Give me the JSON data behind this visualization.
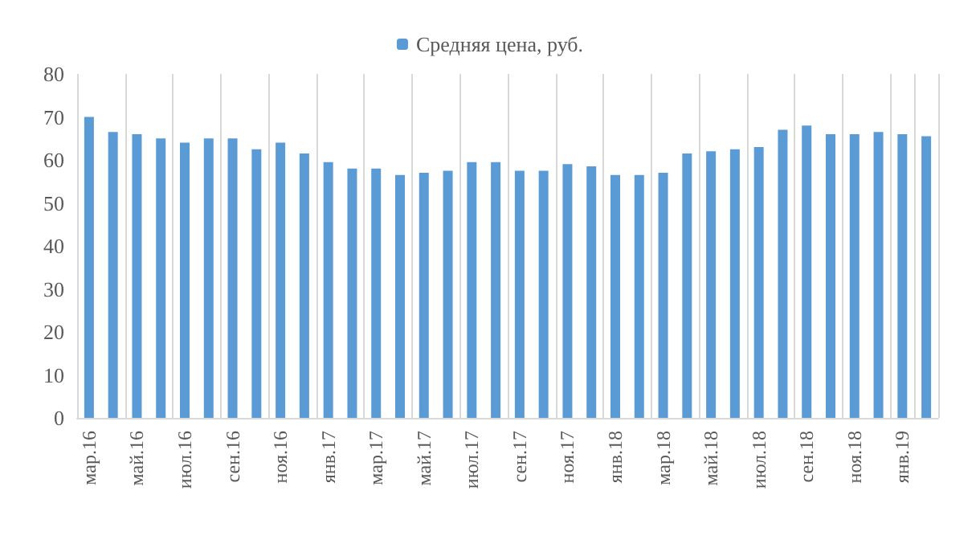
{
  "chart_data": {
    "type": "bar",
    "legend": "top",
    "categories": [
      "мар.16",
      null,
      "май.16",
      null,
      "июл.16",
      null,
      "сен.16",
      null,
      "ноя.16",
      null,
      "янв.17",
      null,
      "мар.17",
      null,
      "май.17",
      null,
      "июл.17",
      null,
      "сен.17",
      null,
      "ноя.17",
      null,
      "янв.18",
      null,
      "мар.18",
      null,
      "май.18",
      null,
      "июл.18",
      null,
      "сен.18",
      null,
      "ноя.18",
      null,
      "янв.19",
      null
    ],
    "series": [
      {
        "name": "Средняя цена, руб.",
        "color": "#5b9bd5",
        "values": [
          70,
          66.5,
          66,
          65,
          64,
          65,
          65,
          62.5,
          64,
          61.5,
          59.5,
          58,
          58,
          56.5,
          57,
          57.5,
          59.5,
          59.5,
          57.5,
          57.5,
          59,
          58.5,
          56.5,
          56.5,
          57,
          61.5,
          62,
          62.5,
          63,
          67,
          68,
          66,
          66,
          66.5,
          66,
          65.5
        ]
      }
    ],
    "ylim": [
      0,
      80
    ],
    "yticks": [
      0,
      10,
      20,
      30,
      40,
      50,
      60,
      70,
      80
    ],
    "grid": "x"
  }
}
